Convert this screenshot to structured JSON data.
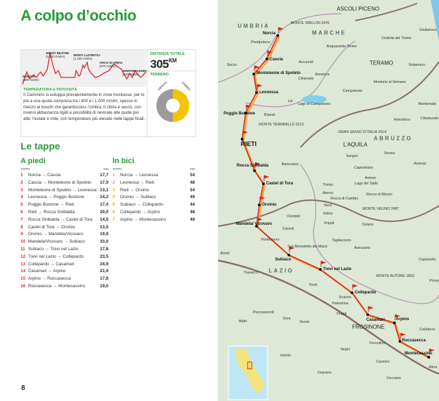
{
  "title": "A colpo d’occhio",
  "profile": {
    "peaks": [
      {
        "name": "NORCIA",
        "alt": "(600 m/slm)"
      },
      {
        "name": "MONTI REATINI",
        "alt": "(1.510 m/slm)"
      },
      {
        "name": "MONTI LUCRETILI",
        "alt": "(1.100 m/slm)"
      },
      {
        "name": "ARCO DI TREVI",
        "alt": "(970 m/slm)"
      },
      {
        "name": "MONTECASSINO",
        "alt": "(520 m/slm)"
      }
    ]
  },
  "distance": {
    "label": "DISTANZA TOTALE",
    "value": "305",
    "unit": "KM"
  },
  "terrain": {
    "label": "TERRENO",
    "asphalt_label": "ASFALTO",
    "dirt_label": "STERRATO",
    "asphalt_share": 0.5,
    "colors": {
      "asphalt": "#9b9b9b",
      "dirt": "#f5c400"
    }
  },
  "climate": {
    "label": "TEMPERATURA E PIOVOSITÀ",
    "text": "Il Cammino si sviluppa prevalentemente in zone montuose, per lo più a una quota compresa tra i 400 e i 1.000 m/slm, spesso in mezzo ai boschi che garantiscono l’ombra. Il clima è secco, con inverni abbastanza rigidi e possibilità di nevicate alle quote più alte; l’estate è mite, con temperature più elevate nelle tappe finali."
  },
  "stages_title": "Le tappe",
  "walk": {
    "title": "A piedi",
    "col_stage": "TAPPA",
    "col_km": "KM",
    "color": "#e3202a",
    "rows": [
      {
        "n": "1",
        "route": "Norcia → Cascia",
        "km": "17,7"
      },
      {
        "n": "2",
        "route": "Cascia → Monteleone di Spoleto",
        "km": "17,9"
      },
      {
        "n": "3",
        "route": "Monteleone di Spoleto → Leonessa",
        "km": "13,1"
      },
      {
        "n": "4",
        "route": "Leonessa → Poggio Bustone",
        "km": "14,2"
      },
      {
        "n": "5",
        "route": "Poggio Bustone → Rieti",
        "km": "17,4"
      },
      {
        "n": "6",
        "route": "Rieti → Rocca Sinibalda",
        "km": "20,0"
      },
      {
        "n": "7",
        "route": "Rocca Sinibalda → Castel di Tora",
        "km": "14,5"
      },
      {
        "n": "8",
        "route": "Castel di Tora → Orvinio",
        "km": "13,5"
      },
      {
        "n": "9",
        "route": "Orvinio → Mandela/Vicovaro",
        "km": "19,9"
      },
      {
        "n": "10",
        "route": "Mandela/Vicovaro → Subiaco",
        "km": "33,0"
      },
      {
        "n": "11",
        "route": "Subiaco → Trevi nel Lazio",
        "km": "17,8"
      },
      {
        "n": "12",
        "route": "Trevi nel Lazio → Collepardo",
        "km": "23,5"
      },
      {
        "n": "13",
        "route": "Collepardo → Casamari",
        "km": "24,9"
      },
      {
        "n": "14",
        "route": "Casamari → Arpino",
        "km": "21,9"
      },
      {
        "n": "15",
        "route": "Arpino → Roccasecca",
        "km": "17,8"
      },
      {
        "n": "16",
        "route": "Roccasecca → Montecassino",
        "km": "19,0"
      }
    ]
  },
  "bike": {
    "title": "In bici",
    "col_stage": "TAPPA",
    "col_km": "KM",
    "color": "#f2a20c",
    "rows": [
      {
        "n": "1",
        "route": "Norcia → Leonessa",
        "km": "54"
      },
      {
        "n": "2",
        "route": "Leonessa → Rieti",
        "km": "48"
      },
      {
        "n": "3",
        "route": "Rieti → Orvinio",
        "km": "54"
      },
      {
        "n": "4",
        "route": "Orvinio → Subiaco",
        "km": "49"
      },
      {
        "n": "5",
        "route": "Subiaco → Collepardo",
        "km": "44"
      },
      {
        "n": "6",
        "route": "Collepardo → Arpino",
        "km": "48"
      },
      {
        "n": "7",
        "route": "Arpino → Montecassino",
        "km": "49"
      }
    ]
  },
  "page_number": "8",
  "map": {
    "stops": [
      "Norcia",
      "Cascia",
      "Monteleone di Spoleto",
      "Leonessa",
      "Poggio Bustone",
      "RIETI",
      "Rocca Sinibalda",
      "Castel di Tora",
      "Orvinio",
      "Mandela/ Vicovaro",
      "Subiaco",
      "Trevi nel Lazio",
      "Collepardo",
      "Casamari",
      "Arpino",
      "Roccasecca",
      "Montecassino"
    ],
    "regions": [
      "UMBRIA",
      "MARCHE",
      "ABRUZZO",
      "LAZIO"
    ],
    "cities": [
      "ASCOLI PICENO",
      "TERAMO",
      "L’AQUILA",
      "FROSINONE"
    ],
    "places": [
      "MONTE SIBILLINI 2476",
      "Piediputeno",
      "Acquasanta Terme",
      "Civitella del Tronto",
      "Giulianova",
      "Accumoli",
      "Amatrice",
      "Cittareale",
      "Notaresco",
      "Montorio al Vomano",
      "Campotosto",
      "Lago di Campotosto",
      "Montereale",
      "Bisenti",
      "MONTE TERMINILLO 2213",
      "Antrodoco",
      "Cittaducale",
      "GRAN SASSO D’ITALIA 2914",
      "Penne",
      "Assergi",
      "Barisciano",
      "Capestrano",
      "Lago del Salto",
      "Rocca di Cambio",
      "Rocca di Mezzo",
      "MONTE VELINO 2487",
      "Ovindoli",
      "Popoli",
      "Celano",
      "Carsoli",
      "Tagliacozzo",
      "Avezzano",
      "San Benedetto dei Marsi",
      "Arsoli",
      "Capistrello",
      "Trasacco",
      "MONTE AUTORE 1853",
      "Tivoli",
      "Scanno",
      "Palestrina",
      "Pescasseroli",
      "Fiuggi",
      "Sora",
      "Alatri",
      "Colleferro",
      "Ferentino",
      "Segni",
      "Velletri",
      "Atina",
      "Ceprano",
      "Ceccano",
      "Sezze",
      "Cassino",
      "Priverno",
      "Pontecorvo",
      "Sacco",
      "Liri",
      "Sangro",
      "Aniene",
      "Nera",
      "Velino",
      "Aterno",
      "Tronto"
    ]
  }
}
